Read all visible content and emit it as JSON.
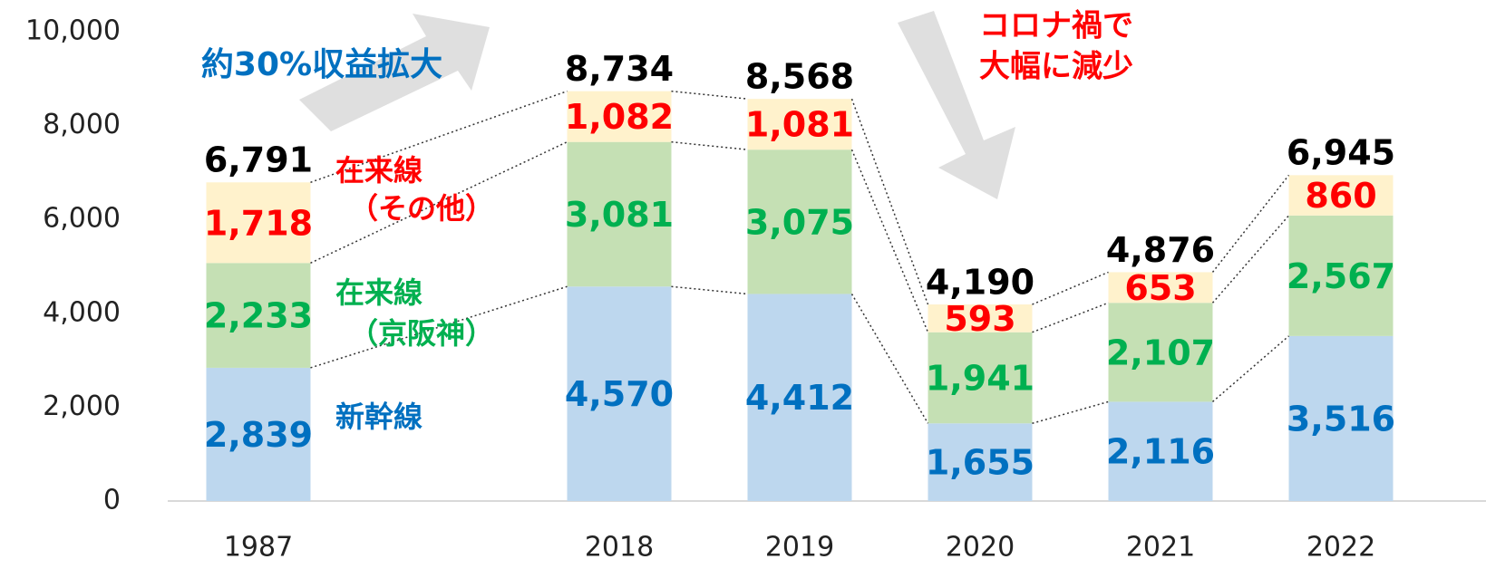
{
  "chart_data": {
    "type": "stacked_bar",
    "categories": [
      "1987",
      "2018",
      "2019",
      "2020",
      "2021",
      "2022"
    ],
    "series": [
      {
        "name": [
          "新幹線"
        ],
        "color": "#bdd7ee",
        "label_color": "#0070c0",
        "values": [
          2839,
          4570,
          4412,
          1655,
          2116,
          3516
        ],
        "value_labels": [
          "2,839",
          "4,570",
          "4,412",
          "1,655",
          "2,116",
          "3,516"
        ]
      },
      {
        "name": [
          "在来線",
          "（京阪神）"
        ],
        "color": "#c5e0b4",
        "label_color": "#00b050",
        "values": [
          2233,
          3081,
          3075,
          1941,
          2107,
          2567
        ],
        "value_labels": [
          "2,233",
          "3,081",
          "3,075",
          "1,941",
          "2,107",
          "2,567"
        ]
      },
      {
        "name": [
          "在来線",
          "（その他）"
        ],
        "color": "#fff2cc",
        "label_color": "#ff0000",
        "values": [
          1718,
          1082,
          1081,
          593,
          653,
          860
        ],
        "value_labels": [
          "1,718",
          "1,082",
          "1,081",
          "593",
          "653",
          "860"
        ]
      }
    ],
    "totals": [
      6791,
      8734,
      8568,
      4190,
      4876,
      6945
    ],
    "total_labels": [
      "6,791",
      "8,734",
      "8,568",
      "4,190",
      "4,876",
      "6,945"
    ],
    "ylim": [
      0,
      10000
    ],
    "yticks": [
      0,
      {
        "value": 2000,
        "label": "2,000"
      },
      {
        "value": 4000,
        "label": "4,000"
      },
      {
        "value": 6000,
        "label": "6,000"
      },
      {
        "value": 8000,
        "label": "8,000"
      },
      {
        "value": 10000,
        "label": "10,000"
      }
    ],
    "annotations": [
      "約30%収益拡大",
      "コロナ禍で",
      "大幅に減少"
    ]
  }
}
